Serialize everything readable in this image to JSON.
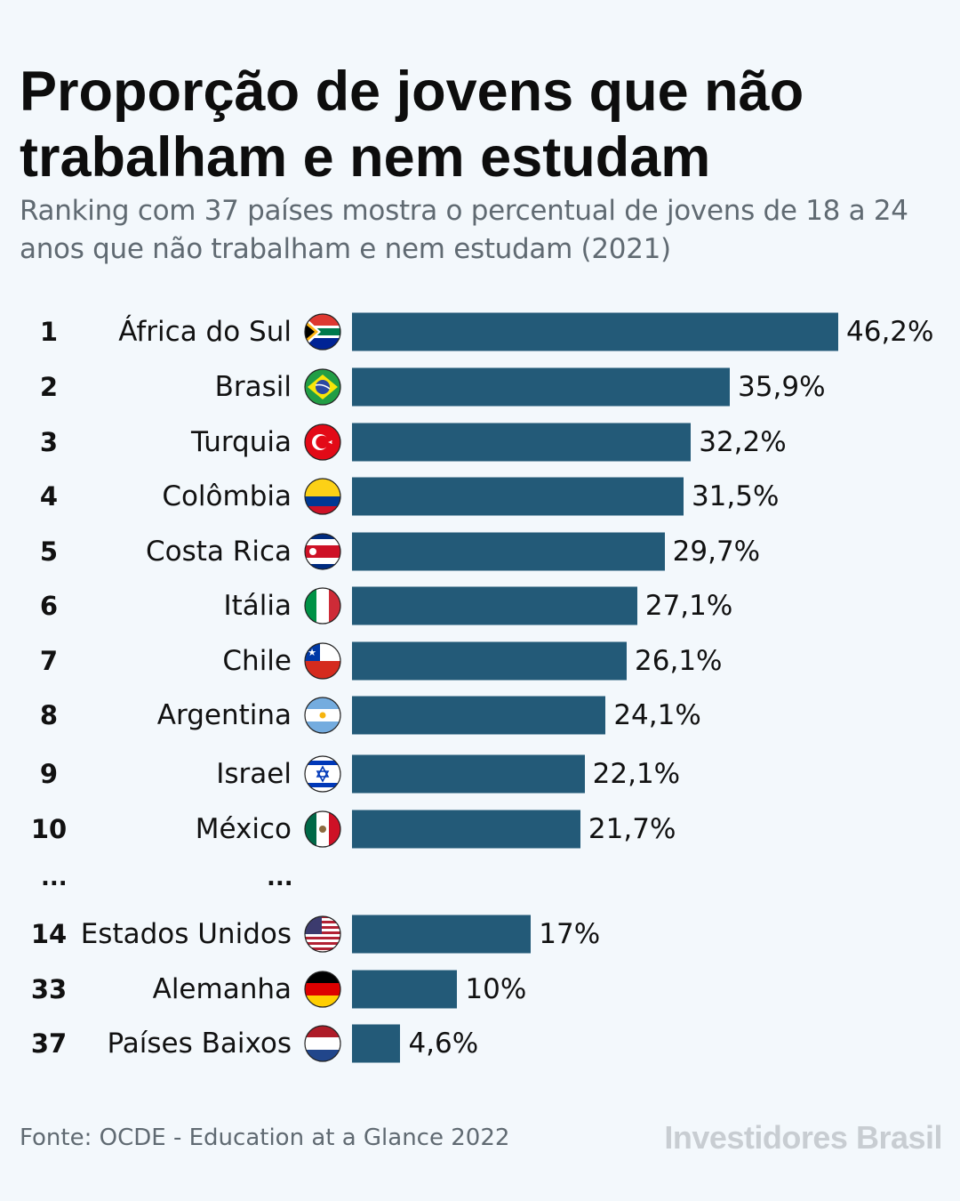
{
  "title": "Proporção de jovens que não trabalham e nem estudam",
  "subtitle": "Ranking com 37 países mostra o percentual de jovens de 18 a 24 anos que não trabalham e nem estudam (2021)",
  "source": "Fonte: OCDE - Education at a Glance 2022",
  "brand": "Investidores Brasil",
  "colors": {
    "bar": "#235a78",
    "background": "#f3f8fc"
  },
  "ellipsis": {
    "rank": "...",
    "country": "..."
  },
  "chart_data": {
    "type": "bar",
    "orientation": "horizontal",
    "unit": "%",
    "xlim": [
      0,
      46.2
    ],
    "grid": false,
    "rows": [
      {
        "rank": "1",
        "country": "África do Sul",
        "flag": "south-africa",
        "value": 46.2,
        "label": "46,2%"
      },
      {
        "rank": "2",
        "country": "Brasil",
        "flag": "brazil",
        "value": 35.9,
        "label": "35,9%"
      },
      {
        "rank": "3",
        "country": "Turquia",
        "flag": "turkey",
        "value": 32.2,
        "label": "32,2%"
      },
      {
        "rank": "4",
        "country": "Colômbia",
        "flag": "colombia",
        "value": 31.5,
        "label": "31,5%"
      },
      {
        "rank": "5",
        "country": "Costa Rica",
        "flag": "costa-rica",
        "value": 29.7,
        "label": "29,7%"
      },
      {
        "rank": "6",
        "country": "Itália",
        "flag": "italy",
        "value": 27.1,
        "label": "27,1%"
      },
      {
        "rank": "7",
        "country": "Chile",
        "flag": "chile",
        "value": 26.1,
        "label": "26,1%"
      },
      {
        "rank": "8",
        "country": "Argentina",
        "flag": "argentina",
        "value": 24.1,
        "label": "24,1%"
      },
      {
        "rank": "9",
        "country": "Israel",
        "flag": "israel",
        "value": 22.1,
        "label": "22,1%"
      },
      {
        "rank": "10",
        "country": "México",
        "flag": "mexico",
        "value": 21.7,
        "label": "21,7%"
      },
      {
        "rank": "14",
        "country": "Estados Unidos",
        "flag": "united-states",
        "value": 17,
        "label": "17%"
      },
      {
        "rank": "33",
        "country": "Alemanha",
        "flag": "germany",
        "value": 10,
        "label": "10%"
      },
      {
        "rank": "37",
        "country": "Países Baixos",
        "flag": "netherlands",
        "value": 4.6,
        "label": "4,6%"
      }
    ]
  }
}
